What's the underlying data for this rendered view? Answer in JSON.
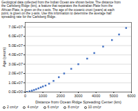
{
  "chart_data": {
    "type": "scatter",
    "subtitle": [
      "Geological data collected from the Indian Ocean are shown below. The distance from",
      "the Carlsberg Ridge (km), a feature that separates the Australian Plate from the",
      "African Plate, is given on the x-axis. The age of the oceanic crust (years) at each",
      "point, is given on the y-axis. Use this information to determine the average half",
      "spreading rate for the Carlsberg Ridge."
    ],
    "xlabel": "Distance from Ocean Ridge Spreading Center (km)",
    "ylabel": "Age (years)",
    "x": [
      100,
      250,
      380,
      500,
      620,
      750,
      880,
      1000,
      1150,
      1350,
      1600,
      1900,
      2200,
      2600,
      3000,
      3500,
      3900,
      4400,
      4900,
      5300,
      5700
    ],
    "values": [
      200000,
      800000,
      1500000,
      2200000,
      3000000,
      4000000,
      5000000,
      6000000,
      7000000,
      9000000,
      12000000,
      16000000,
      20000000,
      25000000,
      30000000,
      36000000,
      42000000,
      49000000,
      56000000,
      62000000,
      69000000
    ],
    "color": "#4472C4",
    "marker": "square",
    "xlim": [
      0,
      6000
    ],
    "ylim": [
      0,
      75000000
    ],
    "xticks": [
      0,
      1000,
      2000,
      3000,
      4000,
      5000,
      6000
    ],
    "yticks": [
      {
        "value": 0,
        "label": "0.0E+00"
      },
      {
        "value": 10000000,
        "label": "1.0E+07"
      },
      {
        "value": 20000000,
        "label": "2.0E+07"
      },
      {
        "value": 30000000,
        "label": "3.0E+07"
      },
      {
        "value": 40000000,
        "label": "4.0E+07"
      },
      {
        "value": 50000000,
        "label": "5.0E+07"
      },
      {
        "value": 60000000,
        "label": "6.0E+07"
      },
      {
        "value": 70000000,
        "label": "7.0E+07"
      }
    ],
    "grid": true,
    "annotations": [
      "2 cm/yr",
      "4 cm/yr",
      "6 cm/yr",
      "8 cm/yr",
      "10 cm/yr"
    ]
  }
}
